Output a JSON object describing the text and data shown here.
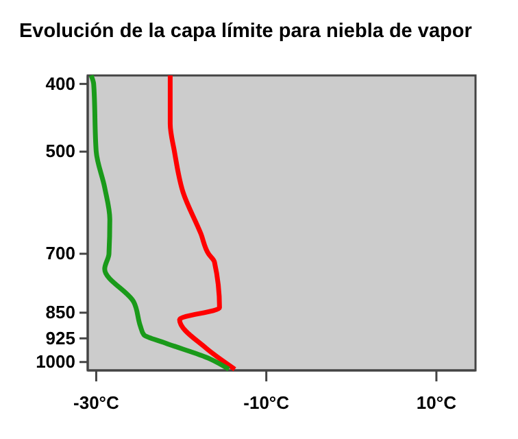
{
  "chart_data": {
    "type": "line",
    "title": "Evolución de la capa límite para niebla de vapor",
    "log": "y",
    "grid": false,
    "marker": "none",
    "line_style": "solid",
    "xlim": [
      -31,
      14.6
    ],
    "xticks": [
      {
        "value": -30,
        "label": "-30°C"
      },
      {
        "value": -10,
        "label": "-10°C"
      },
      {
        "value": 10,
        "label": "10°C"
      }
    ],
    "ylim": [
      1028,
      389
    ],
    "yticks": [
      400,
      500,
      700,
      850,
      925,
      1000
    ],
    "series": [
      {
        "color": "#ff0000",
        "x": [
          -21.3,
          -21.3,
          -20.8,
          -19.8,
          -17.7,
          -16.8,
          -16.1,
          -15.5,
          -20.2,
          -17.1,
          -13.7
        ],
        "values": [
          389,
          456,
          500,
          571,
          655,
          700,
          719,
          836,
          869,
          955,
          1024
        ]
      },
      {
        "color": "#1a9a1a",
        "x": [
          -30.6,
          -30.3,
          -30,
          -29,
          -28.4,
          -28.5,
          -29,
          -25.6,
          -24.8,
          -24.4,
          -21.9,
          -16.6,
          -14.4
        ],
        "values": [
          389,
          400,
          500,
          563,
          625,
          700,
          736,
          820,
          889,
          914,
          939,
          990,
          1024
        ]
      }
    ]
  }
}
